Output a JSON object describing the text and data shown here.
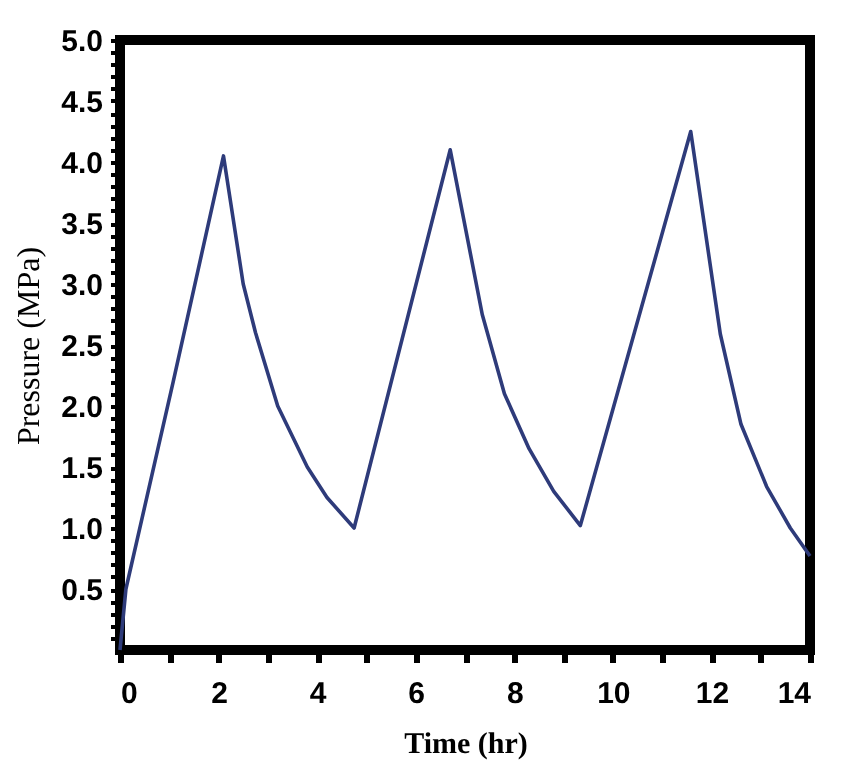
{
  "chart_data": {
    "type": "line",
    "xlabel": "Time (hr)",
    "ylabel": "Pressure (MPa)",
    "series": [
      {
        "color": "#2e3b7a",
        "x": [
          0,
          0.12,
          1.08,
          2.1,
          2.5,
          2.75,
          3.2,
          3.8,
          4.2,
          4.75,
          6.7,
          7.35,
          7.8,
          8.3,
          8.8,
          9.34,
          11.58,
          12.18,
          12.6,
          13.12,
          13.6,
          14.0
        ],
        "values": [
          0,
          0.5,
          2.2,
          4.05,
          3.0,
          2.6,
          2.0,
          1.5,
          1.25,
          1.0,
          4.1,
          2.75,
          2.1,
          1.65,
          1.3,
          1.02,
          4.25,
          2.59,
          1.85,
          1.34,
          1.0,
          0.77
        ]
      }
    ],
    "xlim": [
      0,
      14
    ],
    "ylim": [
      0,
      5
    ],
    "xticks": [
      0,
      {
        "value": 1,
        "label": null
      },
      2,
      {
        "value": 3,
        "label": null
      },
      4,
      {
        "value": 5,
        "label": null
      },
      6,
      {
        "value": 7,
        "label": null
      },
      8,
      {
        "value": 9,
        "label": null
      },
      10,
      {
        "value": 11,
        "label": null
      },
      12,
      {
        "value": 13,
        "label": null
      },
      14
    ],
    "yticks": [
      {
        "value": 0.1,
        "label": null
      },
      {
        "value": 0.2,
        "label": null
      },
      {
        "value": 0.3,
        "label": null
      },
      {
        "value": 0.4,
        "label": null
      },
      {
        "value": 0.5,
        "label": "0.5"
      },
      {
        "value": 0.6,
        "label": null
      },
      {
        "value": 0.7,
        "label": null
      },
      {
        "value": 0.8,
        "label": null
      },
      {
        "value": 0.9,
        "label": null
      },
      {
        "value": 1.0,
        "label": "1.0"
      },
      {
        "value": 1.1,
        "label": null
      },
      {
        "value": 1.2,
        "label": null
      },
      {
        "value": 1.3,
        "label": null
      },
      {
        "value": 1.4,
        "label": null
      },
      {
        "value": 1.5,
        "label": "1.5"
      },
      {
        "value": 1.6,
        "label": null
      },
      {
        "value": 1.7,
        "label": null
      },
      {
        "value": 1.8,
        "label": null
      },
      {
        "value": 1.9,
        "label": null
      },
      {
        "value": 2.0,
        "label": "2.0"
      },
      {
        "value": 2.1,
        "label": null
      },
      {
        "value": 2.2,
        "label": null
      },
      {
        "value": 2.3,
        "label": null
      },
      {
        "value": 2.4,
        "label": null
      },
      {
        "value": 2.5,
        "label": "2.5"
      },
      {
        "value": 2.6,
        "label": null
      },
      {
        "value": 2.7,
        "label": null
      },
      {
        "value": 2.8,
        "label": null
      },
      {
        "value": 2.9,
        "label": null
      },
      {
        "value": 3.0,
        "label": "3.0"
      },
      {
        "value": 3.1,
        "label": null
      },
      {
        "value": 3.2,
        "label": null
      },
      {
        "value": 3.3,
        "label": null
      },
      {
        "value": 3.4,
        "label": null
      },
      {
        "value": 3.5,
        "label": "3.5"
      },
      {
        "value": 3.6,
        "label": null
      },
      {
        "value": 3.7,
        "label": null
      },
      {
        "value": 3.8,
        "label": null
      },
      {
        "value": 3.9,
        "label": null
      },
      {
        "value": 4.0,
        "label": "4.0"
      },
      {
        "value": 4.1,
        "label": null
      },
      {
        "value": 4.2,
        "label": null
      },
      {
        "value": 4.3,
        "label": null
      },
      {
        "value": 4.4,
        "label": null
      },
      {
        "value": 4.5,
        "label": "4.5"
      },
      {
        "value": 4.6,
        "label": null
      },
      {
        "value": 4.7,
        "label": null
      },
      {
        "value": 4.8,
        "label": null
      },
      {
        "value": 4.9,
        "label": null
      },
      {
        "value": 5.0,
        "label": "5.0"
      }
    ],
    "grid": false,
    "legend": false,
    "marker": "none",
    "line_style": "solid"
  }
}
